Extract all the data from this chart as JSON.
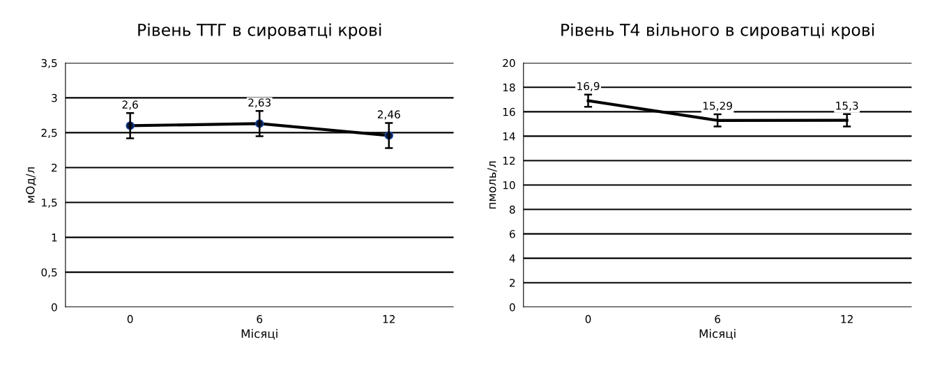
{
  "chart_data": [
    {
      "type": "line",
      "title": "Рівень ТТГ в сироватці крові",
      "xlabel": "Місяці",
      "ylabel": "мОд/л",
      "categories": [
        "0",
        "6",
        "12"
      ],
      "series": [
        {
          "color": "#000000",
          "values": [
            2.6,
            2.63,
            2.46
          ],
          "errors": [
            0.18,
            0.18,
            0.18
          ],
          "value_labels": [
            "2,6",
            "2,63",
            "2,46"
          ]
        }
      ],
      "ylim": [
        0,
        3.5
      ],
      "yticks": [
        0,
        {
          "value": 0.5,
          "label": "0,5"
        },
        1,
        {
          "value": 1.5,
          "label": "1,5"
        },
        2,
        {
          "value": 2.5,
          "label": "2,5"
        },
        3,
        {
          "value": 3.5,
          "label": "3,5"
        }
      ],
      "grid": "y",
      "marker": "circle",
      "line_style": "solid",
      "legend": false
    },
    {
      "type": "line",
      "title": "Рівень Т4 вільного в сироватці крові",
      "xlabel": "Місяці",
      "ylabel": "пмоль/л",
      "categories": [
        "0",
        "6",
        "12"
      ],
      "series": [
        {
          "color": "#000000",
          "values": [
            16.9,
            15.29,
            15.3
          ],
          "errors": [
            0.5,
            0.5,
            0.5
          ],
          "value_labels": [
            "16,9",
            "15,29",
            "15,3"
          ]
        }
      ],
      "ylim": [
        0,
        20
      ],
      "yticks": [
        0,
        2,
        4,
        6,
        8,
        10,
        12,
        14,
        16,
        18,
        20
      ],
      "grid": "y",
      "marker": "none",
      "line_style": "solid",
      "legend": false
    }
  ]
}
